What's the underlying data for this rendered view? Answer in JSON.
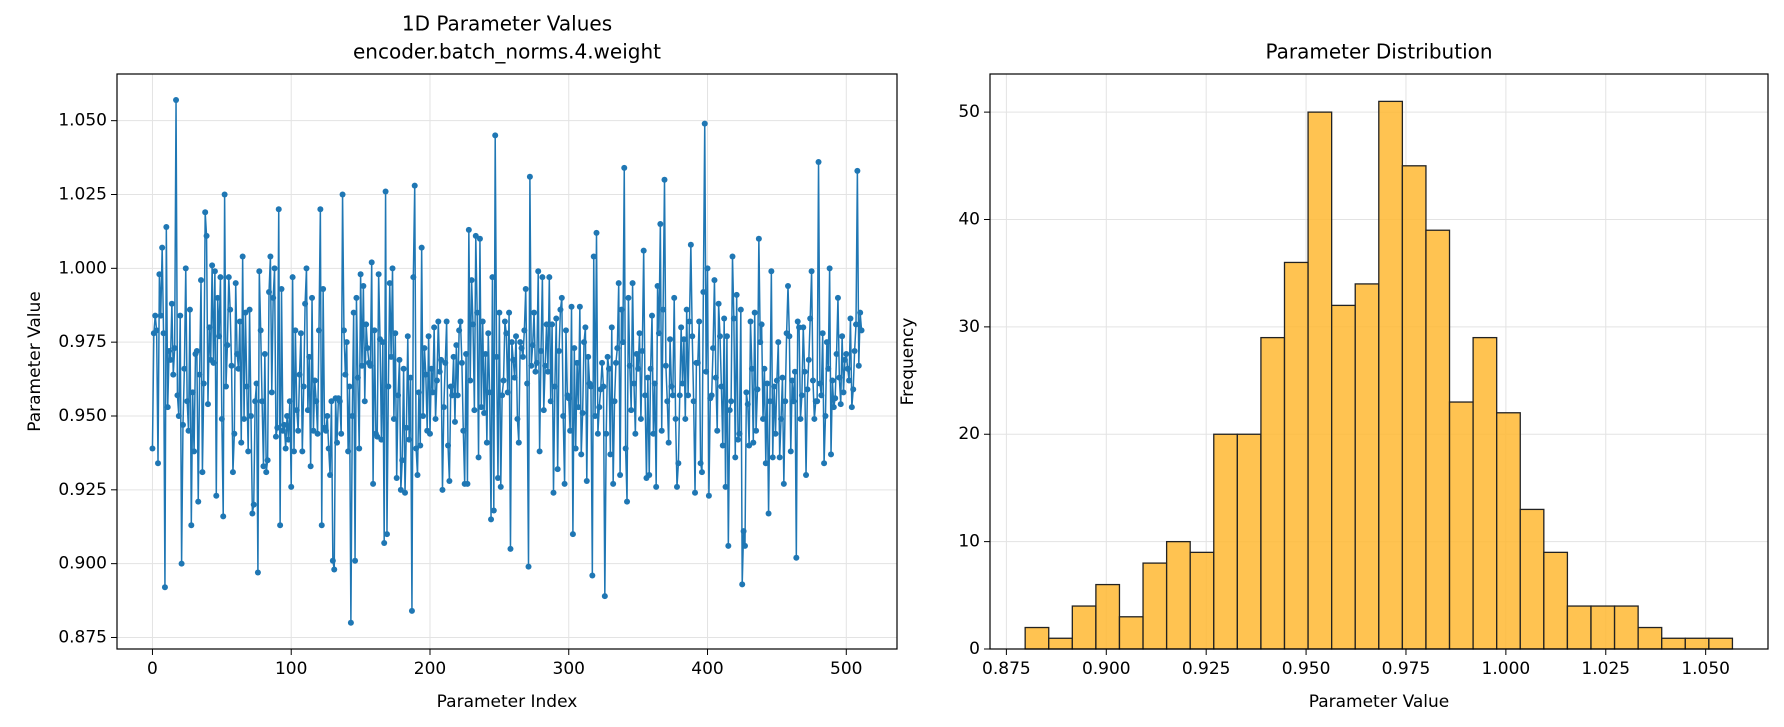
{
  "chart_data": [
    {
      "type": "line",
      "title": "1D Parameter Values",
      "subtitle": "encoder.batch_norms.4.weight",
      "xlabel": "Parameter Index",
      "ylabel": "Parameter Value",
      "color": "#1f77b4",
      "grid": true,
      "xlim": [
        -25.55,
        536.55
      ],
      "xticks": [
        0,
        100,
        200,
        300,
        400,
        500
      ],
      "ylim": [
        0.8711,
        1.0658
      ],
      "yticks": [
        0.875,
        {
          "value": 0.9,
          "label": "0.900"
        },
        0.925,
        {
          "value": 0.95,
          "label": "0.950"
        },
        0.975,
        {
          "value": 1.0,
          "label": "1.000"
        },
        1.025,
        {
          "value": 1.05,
          "label": "1.050"
        }
      ],
      "values": [
        0.939,
        0.978,
        0.984,
        0.979,
        0.934,
        0.998,
        0.984,
        1.007,
        0.978,
        0.892,
        1.014,
        0.953,
        0.972,
        0.969,
        0.988,
        0.964,
        0.973,
        1.057,
        0.957,
        0.95,
        0.984,
        0.9,
        0.947,
        0.966,
        1.0,
        0.955,
        0.945,
        0.986,
        0.913,
        0.958,
        0.938,
        0.971,
        0.972,
        0.921,
        0.964,
        0.996,
        0.931,
        0.961,
        1.019,
        1.011,
        0.954,
        0.98,
        0.969,
        1.001,
        0.968,
        0.999,
        0.923,
        0.99,
        0.977,
        0.997,
        0.949,
        0.916,
        1.025,
        0.96,
        0.974,
        0.997,
        0.986,
        0.967,
        0.931,
        0.944,
        0.995,
        0.971,
        0.966,
        0.982,
        0.941,
        1.004,
        0.949,
        0.985,
        0.96,
        0.938,
        0.986,
        0.95,
        0.917,
        0.92,
        0.955,
        0.961,
        0.897,
        0.999,
        0.979,
        0.955,
        0.933,
        0.971,
        0.931,
        0.935,
        0.992,
        1.004,
        0.958,
        0.99,
        1.0,
        0.943,
        0.946,
        1.02,
        0.913,
        0.993,
        0.945,
        0.947,
        0.939,
        0.95,
        0.942,
        0.955,
        0.926,
        0.997,
        0.938,
        0.979,
        0.952,
        0.945,
        0.964,
        0.978,
        0.938,
        0.96,
        0.988,
        1.0,
        0.952,
        0.97,
        0.933,
        0.99,
        0.945,
        0.962,
        0.955,
        0.944,
        0.979,
        1.02,
        0.913,
        0.993,
        0.946,
        0.945,
        0.95,
        0.939,
        0.93,
        0.955,
        0.901,
        0.898,
        0.956,
        0.941,
        0.956,
        0.955,
        0.944,
        1.025,
        0.979,
        0.964,
        0.975,
        0.938,
        0.96,
        0.88,
        0.95,
        0.985,
        0.901,
        0.99,
        0.963,
        0.939,
        0.998,
        0.967,
        0.994,
        0.955,
        0.981,
        0.973,
        0.968,
        0.967,
        1.002,
        0.927,
        0.979,
        0.944,
        0.943,
        0.998,
        0.976,
        0.942,
        0.975,
        0.907,
        1.026,
        0.91,
        0.96,
        0.995,
        0.97,
        1.0,
        0.949,
        0.978,
        0.929,
        0.957,
        0.969,
        0.925,
        0.935,
        0.966,
        0.924,
        0.946,
        0.977,
        0.942,
        0.963,
        0.884,
        0.997,
        1.028,
        0.939,
        0.93,
        0.958,
        0.94,
        1.007,
        0.95,
        0.973,
        0.964,
        0.945,
        0.977,
        0.944,
        0.966,
        0.958,
        0.98,
        0.949,
        0.962,
        0.982,
        0.965,
        0.969,
        0.925,
        0.953,
        0.968,
        0.982,
        0.94,
        0.928,
        0.96,
        0.957,
        0.97,
        0.948,
        0.974,
        0.957,
        0.979,
        0.982,
        0.968,
        0.945,
        0.927,
        0.971,
        0.927,
        1.013,
        0.962,
        0.996,
        0.981,
        0.952,
        1.011,
        0.985,
        0.936,
        1.01,
        0.953,
        0.982,
        0.951,
        0.971,
        0.941,
        0.978,
        0.958,
        0.915,
        0.997,
        0.918,
        1.045,
        0.97,
        0.929,
        0.985,
        0.926,
        0.957,
        0.962,
        0.982,
        0.978,
        0.958,
        0.985,
        0.905,
        0.975,
        0.969,
        0.963,
        0.977,
        0.949,
        0.941,
        0.975,
        0.973,
        0.97,
        0.979,
        0.993,
        0.961,
        0.899,
        1.031,
        0.967,
        0.974,
        0.985,
        0.965,
        0.968,
        0.999,
        0.938,
        0.972,
        0.997,
        0.952,
        0.967,
        0.981,
        0.965,
        0.997,
        0.955,
        0.981,
        0.924,
        0.96,
        0.983,
        0.932,
        0.972,
        0.986,
        0.99,
        0.95,
        0.927,
        0.979,
        0.957,
        0.956,
        0.945,
        0.987,
        0.91,
        0.973,
        0.939,
        0.968,
        0.953,
        0.987,
        0.937,
        0.951,
        0.975,
        0.98,
        0.928,
        0.97,
        0.961,
        0.96,
        0.896,
        1.004,
        0.95,
        1.012,
        0.944,
        0.953,
        0.959,
        0.968,
        0.96,
        0.889,
        0.944,
        0.97,
        0.966,
        0.937,
        0.98,
        0.927,
        0.955,
        0.968,
        0.973,
        0.995,
        0.93,
        0.986,
        0.975,
        1.034,
        0.939,
        0.921,
        0.99,
        0.967,
        0.952,
        0.995,
        0.961,
        0.944,
        0.971,
        0.966,
        0.978,
        0.949,
        0.972,
        1.006,
        0.957,
        0.929,
        0.963,
        0.93,
        0.966,
        0.984,
        0.944,
        0.961,
        0.926,
        0.994,
        0.978,
        1.015,
        0.945,
        0.986,
        1.03,
        0.967,
        0.955,
        0.941,
        0.976,
        0.96,
        0.957,
        0.99,
        0.949,
        0.926,
        0.934,
        0.957,
        0.98,
        0.961,
        0.976,
        0.949,
        0.986,
        0.957,
        0.982,
        1.008,
        0.977,
        0.955,
        0.924,
        0.968,
        0.968,
        0.982,
        0.934,
        0.931,
        0.992,
        1.049,
        0.965,
        1.0,
        0.923,
        0.956,
        0.957,
        0.973,
        0.996,
        0.963,
        0.945,
        0.988,
        0.977,
        0.96,
        0.94,
        0.983,
        0.926,
        0.977,
        0.906,
        0.952,
        0.955,
        1.004,
        0.983,
        0.936,
        0.991,
        0.942,
        0.944,
        0.986,
        0.893,
        0.911,
        0.906,
        0.958,
        0.954,
        0.94,
        0.982,
        0.966,
        0.941,
        0.985,
        0.945,
        0.959,
        1.01,
        0.975,
        0.981,
        0.949,
        0.966,
        0.934,
        0.961,
        0.917,
        0.955,
        0.999,
        0.936,
        0.96,
        0.944,
        0.962,
        0.975,
        0.936,
        0.949,
        0.963,
        0.927,
        0.955,
        0.978,
        0.994,
        0.977,
        0.938,
        0.962,
        0.955,
        0.965,
        0.902,
        0.982,
        0.98,
        0.949,
        0.957,
        0.98,
        0.965,
        0.93,
        0.959,
        0.969,
        0.983,
        0.999,
        0.962,
        0.949,
        0.955,
        0.955,
        1.036,
        0.961,
        0.957,
        0.978,
        0.934,
        0.95,
        0.975,
        0.966,
        1.0,
        0.937,
        0.962,
        0.953,
        0.956,
        0.971,
        0.99,
        0.963,
        0.954,
        0.977,
        0.958,
        0.969,
        0.971,
        0.966,
        0.962,
        0.983,
        0.953,
        0.959,
        0.972,
        0.981,
        1.033,
        0.967,
        0.985,
        0.979
      ]
    },
    {
      "type": "histogram",
      "title": "Parameter Distribution",
      "xlabel": "Parameter Value",
      "ylabel": "Frequency",
      "color": "#ffb833",
      "edgecolor": "#222222",
      "grid": true,
      "xlim": [
        0.8709,
        1.0656
      ],
      "xticks": [
        0.875,
        {
          "value": 0.9,
          "label": "0.900"
        },
        0.925,
        {
          "value": 0.95,
          "label": "0.950"
        },
        0.975,
        {
          "value": 1.0,
          "label": "1.000"
        },
        1.025,
        {
          "value": 1.05,
          "label": "1.050"
        }
      ],
      "ylim": [
        0,
        53.55
      ],
      "yticks": [
        0,
        10,
        20,
        30,
        40,
        50
      ],
      "bins": [
        0.8797,
        0.8856,
        0.8915,
        0.8974,
        0.9033,
        0.9092,
        0.9151,
        0.921,
        0.9269,
        0.9328,
        0.9387,
        0.9446,
        0.9505,
        0.9564,
        0.9623,
        0.9682,
        0.9741,
        0.98,
        0.9859,
        0.9918,
        0.9977,
        1.0036,
        1.0095,
        1.0154,
        1.0213,
        1.0272,
        1.0331,
        1.039,
        1.0449,
        1.0508,
        1.0567
      ],
      "counts": [
        2,
        1,
        4,
        6,
        3,
        8,
        10,
        9,
        20,
        20,
        29,
        36,
        50,
        32,
        34,
        51,
        45,
        39,
        23,
        29,
        22,
        13,
        9,
        4,
        4,
        4,
        2,
        1,
        1,
        1
      ]
    }
  ]
}
